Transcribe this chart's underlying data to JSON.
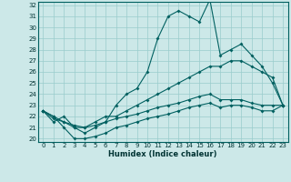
{
  "xlabel": "Humidex (Indice chaleur)",
  "x": [
    0,
    1,
    2,
    3,
    4,
    5,
    6,
    7,
    8,
    9,
    10,
    11,
    12,
    13,
    14,
    15,
    16,
    17,
    18,
    19,
    20,
    21,
    22,
    23
  ],
  "line1": [
    22.5,
    21.5,
    22,
    21,
    20.5,
    21,
    21.5,
    23,
    24,
    24.5,
    26,
    29,
    31,
    31.5,
    31,
    30.5,
    32.5,
    27.5,
    28,
    28.5,
    27.5,
    26.5,
    25,
    23
  ],
  "line2": [
    22.5,
    22,
    21.5,
    21.2,
    21,
    21.5,
    22,
    22,
    22.5,
    23,
    23.5,
    24,
    24.5,
    25,
    25.5,
    26,
    26.5,
    26.5,
    27,
    27,
    26.5,
    26,
    25.5,
    23
  ],
  "line3": [
    22.5,
    21.8,
    21.5,
    21,
    21,
    21.2,
    21.5,
    21.8,
    22,
    22.2,
    22.5,
    22.8,
    23,
    23.2,
    23.5,
    23.8,
    24,
    23.5,
    23.5,
    23.5,
    23.2,
    23,
    23,
    23
  ],
  "line4": [
    22.5,
    22,
    21,
    20,
    20,
    20.2,
    20.5,
    21,
    21.2,
    21.5,
    21.8,
    22,
    22.2,
    22.5,
    22.8,
    23,
    23.2,
    22.8,
    23,
    23,
    22.8,
    22.5,
    22.5,
    23
  ],
  "bg_color": "#cce8e8",
  "line_color": "#006060",
  "grid_color": "#99cccc",
  "ylim": [
    20,
    32
  ],
  "xlim": [
    -0.5,
    23.5
  ],
  "yticks": [
    20,
    21,
    22,
    23,
    24,
    25,
    26,
    27,
    28,
    29,
    30,
    31,
    32
  ],
  "xticks": [
    0,
    1,
    2,
    3,
    4,
    5,
    6,
    7,
    8,
    9,
    10,
    11,
    12,
    13,
    14,
    15,
    16,
    17,
    18,
    19,
    20,
    21,
    22,
    23
  ],
  "tick_fontsize": 5,
  "xlabel_fontsize": 6
}
